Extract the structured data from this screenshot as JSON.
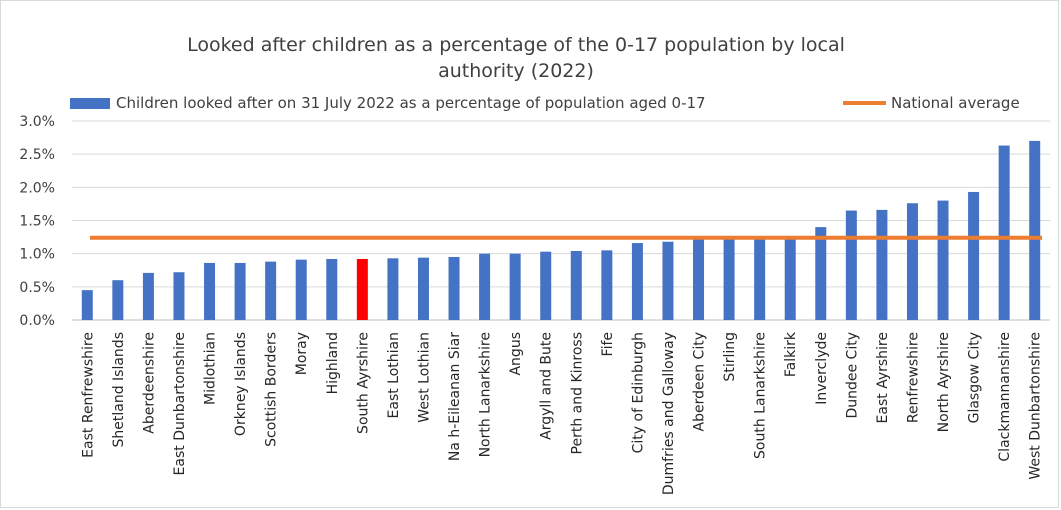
{
  "chart_data": {
    "type": "bar",
    "title_line1": "Looked after children as a percentage of the 0-17 population by local",
    "title_line2": "authority (2022)",
    "categories": [
      "East Renfrewshire",
      "Shetland Islands",
      "Aberdeenshire",
      "East Dunbartonshire",
      "Midlothian",
      "Orkney Islands",
      "Scottish Borders",
      "Moray",
      "Highland",
      "South Ayrshire",
      "East Lothian",
      "West Lothian",
      "Na h-Eileanan Siar",
      "North Lanarkshire",
      "Angus",
      "Argyll and Bute",
      "Perth and Kinross",
      "Fife",
      "City of Edinburgh",
      "Dumfries and Galloway",
      "Aberdeen City",
      "Stirling",
      "South Lanarkshire",
      "Falkirk",
      "Inverclyde",
      "Dundee City",
      "East Ayrshire",
      "Renfrewshire",
      "North Ayrshire",
      "Glasgow City",
      "Clackmannanshire",
      "West Dunbartonshire"
    ],
    "series": [
      {
        "name": "Children looked after on 31 July 2022 as a percentage of population aged 0-17",
        "values": [
          0.45,
          0.6,
          0.71,
          0.72,
          0.86,
          0.86,
          0.88,
          0.91,
          0.92,
          0.92,
          0.93,
          0.94,
          0.95,
          1.0,
          1.0,
          1.03,
          1.04,
          1.05,
          1.16,
          1.18,
          1.22,
          1.22,
          1.22,
          1.22,
          1.4,
          1.65,
          1.66,
          1.76,
          1.8,
          1.93,
          2.63,
          2.7
        ],
        "color": "#4472C4"
      },
      {
        "name": "National average",
        "type": "line",
        "value": 1.24,
        "color": "#ED7D31"
      }
    ],
    "highlight": {
      "category": "South Ayrshire",
      "color": "#FF0000"
    },
    "ylim": [
      0,
      3.0
    ],
    "yticks": [
      "0.0%",
      "0.5%",
      "1.0%",
      "1.5%",
      "2.0%",
      "2.5%",
      "3.0%"
    ],
    "ytick_values": [
      0,
      0.5,
      1.0,
      1.5,
      2.0,
      2.5,
      3.0
    ],
    "grid": true,
    "legend_position": "top"
  }
}
